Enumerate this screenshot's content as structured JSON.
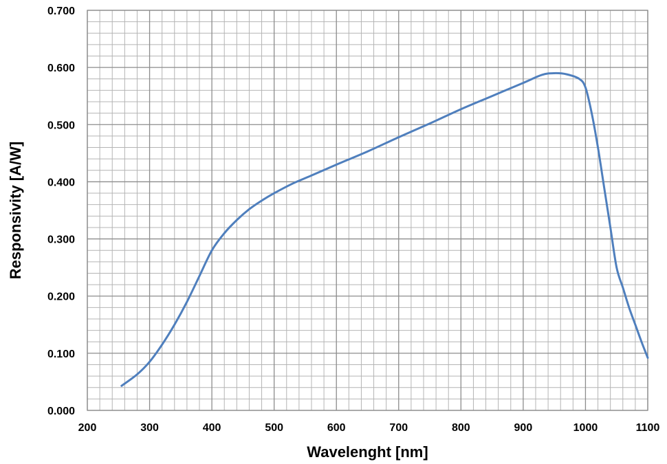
{
  "chart_data": {
    "type": "line",
    "title": "",
    "xlabel": "Wavelenght [nm]",
    "ylabel": "Responsivity [A/W]",
    "xlim": [
      200,
      1100
    ],
    "ylim": [
      0,
      0.7
    ],
    "x_ticks": [
      "200",
      "300",
      "400",
      "500",
      "600",
      "700",
      "800",
      "900",
      "1000",
      "1100"
    ],
    "y_ticks": [
      "0.000",
      "0.100",
      "0.200",
      "0.300",
      "0.400",
      "0.500",
      "0.600",
      "0.700"
    ],
    "grid": true,
    "legend": "none",
    "series": [
      {
        "color": "#4f7fbd",
        "x": [
          255,
          280,
          300,
          320,
          340,
          360,
          380,
          400,
          420,
          440,
          460,
          480,
          500,
          530,
          560,
          600,
          650,
          700,
          750,
          800,
          850,
          900,
          930,
          950,
          970,
          990,
          1000,
          1010,
          1020,
          1030,
          1040,
          1050,
          1060,
          1070,
          1080,
          1090,
          1100
        ],
        "y": [
          0.043,
          0.063,
          0.085,
          0.115,
          0.15,
          0.19,
          0.235,
          0.28,
          0.31,
          0.333,
          0.352,
          0.367,
          0.38,
          0.397,
          0.411,
          0.43,
          0.453,
          0.478,
          0.502,
          0.527,
          0.55,
          0.573,
          0.587,
          0.59,
          0.588,
          0.58,
          0.565,
          0.52,
          0.46,
          0.39,
          0.32,
          0.25,
          0.215,
          0.18,
          0.15,
          0.12,
          0.092
        ]
      }
    ]
  }
}
